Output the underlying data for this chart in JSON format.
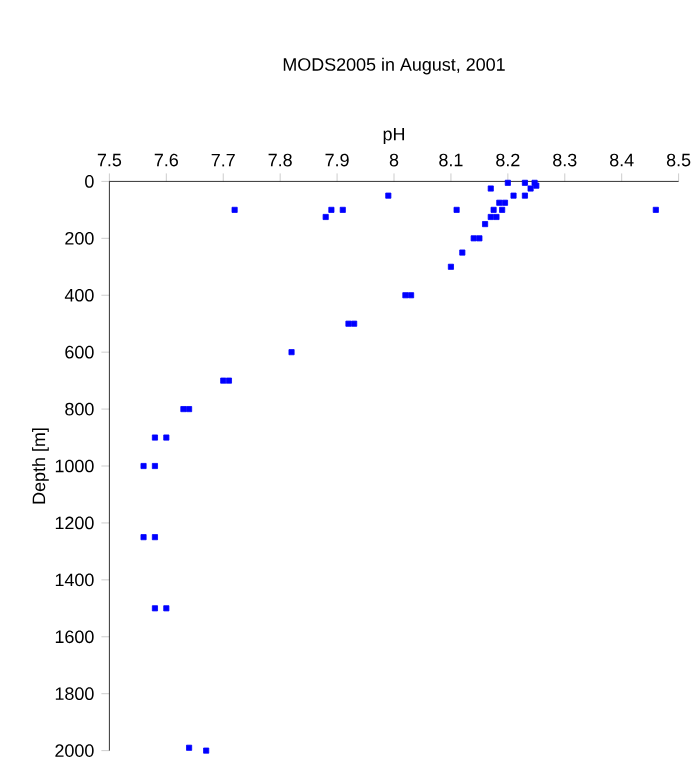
{
  "chart_data": {
    "type": "scatter",
    "title": "MODS2005 in August, 2001",
    "xlabel": "pH",
    "ylabel": "Depth [m]",
    "x": [
      8.2,
      8.17,
      8.23,
      8.247,
      8.24,
      8.25,
      7.72,
      7.89,
      7.91,
      7.88,
      7.99,
      8.11,
      8.21,
      8.185,
      8.195,
      8.175,
      8.19,
      8.17,
      8.18,
      8.16,
      8.14,
      8.15,
      8.12,
      8.23,
      8.1,
      8.02,
      8.03,
      8.46,
      7.92,
      7.93,
      7.82,
      7.7,
      7.71,
      7.63,
      7.64,
      7.58,
      7.6,
      7.56,
      7.58,
      7.56,
      7.58,
      7.58,
      7.6,
      7.64,
      7.67
    ],
    "values": [
      5,
      25,
      5,
      5,
      25,
      15,
      100,
      100,
      100,
      125,
      50,
      100,
      50,
      75,
      75,
      100,
      100,
      125,
      125,
      150,
      200,
      200,
      250,
      50,
      300,
      400,
      400,
      100,
      500,
      500,
      600,
      700,
      700,
      800,
      800,
      900,
      900,
      1000,
      1000,
      1250,
      1250,
      1500,
      1500,
      1990,
      2000
    ],
    "color": "#0000ff",
    "marker": "square",
    "xlim": [
      7.5,
      8.5
    ],
    "ylim": [
      2000,
      0
    ],
    "xticks": [
      7.5,
      7.6,
      7.7,
      7.8,
      7.9,
      8,
      8.1,
      8.2,
      8.3,
      8.4,
      8.5
    ],
    "yticks": [
      0,
      200,
      400,
      600,
      800,
      1000,
      1200,
      1400,
      1600,
      1800,
      2000
    ]
  }
}
